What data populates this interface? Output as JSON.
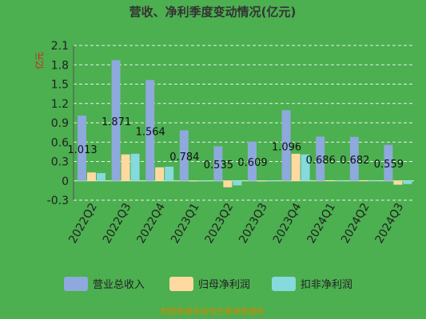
{
  "chart_data": {
    "type": "bar",
    "title": "营收、净利季度变动情况(亿元)",
    "ylabel": "亿元",
    "source": "制图数据来自恒生聚源数据库",
    "categories": [
      "2022Q2",
      "2022Q3",
      "2022Q4",
      "2023Q1",
      "2023Q2",
      "2023Q3",
      "2023Q4",
      "2024Q1",
      "2024Q2",
      "2024Q3"
    ],
    "ylim": [
      -0.3,
      2.1
    ],
    "yticks": [
      -0.3,
      0,
      0.3,
      0.6,
      0.9,
      1.2,
      1.5,
      1.8,
      2.1
    ],
    "ytick_labels": [
      "-0.3",
      "0",
      "0.3",
      "0.6",
      "0.9",
      "1.2",
      "1.5",
      "1.8",
      "2.1"
    ],
    "grid": true,
    "legend_position": "bottom",
    "series": [
      {
        "name": "营业总收入",
        "color": "#8ea9db",
        "values": [
          1.013,
          1.871,
          1.564,
          0.784,
          0.535,
          0.609,
          1.096,
          0.686,
          0.682,
          0.559
        ]
      },
      {
        "name": "归母净利润",
        "color": "#ffd9a0",
        "values": [
          0.13,
          0.41,
          0.21,
          0.0,
          -0.1,
          -0.01,
          0.42,
          0.01,
          0.01,
          -0.06
        ]
      },
      {
        "name": "扣非净利润",
        "color": "#86d9dd",
        "values": [
          0.12,
          0.42,
          0.22,
          0.0,
          -0.07,
          -0.01,
          0.41,
          0.01,
          0.01,
          -0.05
        ]
      }
    ],
    "data_labels": [
      "1.013",
      "1.871",
      "1.564",
      "0.784",
      "0.535",
      "0.609",
      "1.096",
      "0.686",
      "0.682",
      "0.559"
    ]
  }
}
